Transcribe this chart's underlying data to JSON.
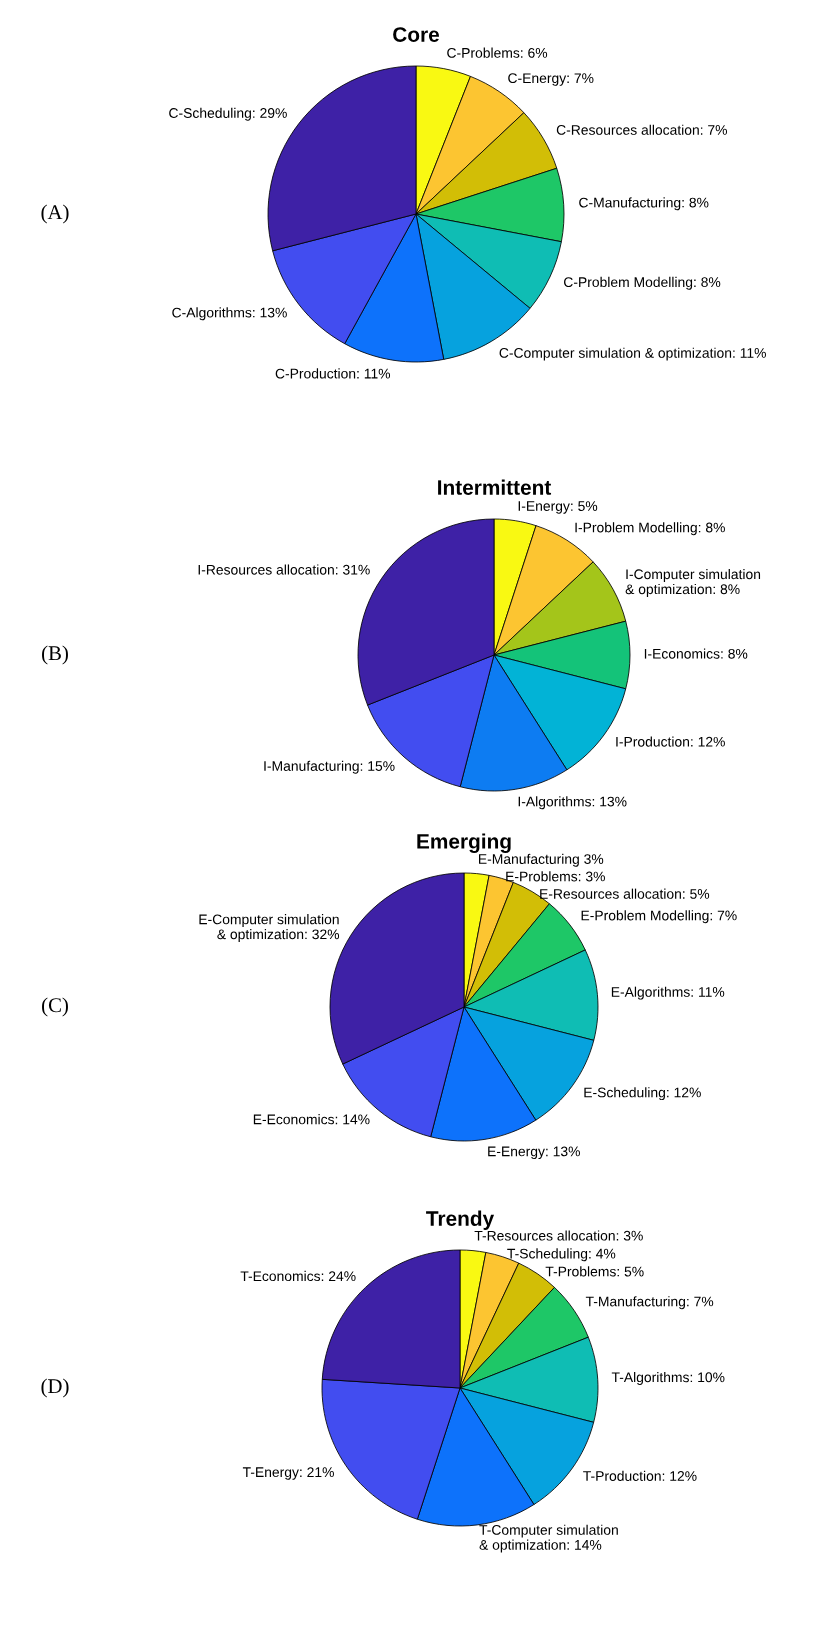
{
  "chart_data": [
    {
      "type": "pie",
      "title": "Core",
      "annotations": [
        "(A)"
      ],
      "categories": [
        "C-Problems: 6%",
        "C-Energy: 7%",
        "C-Resources allocation: 7%",
        "C-Manufacturing: 8%",
        "C-Problem Modelling: 8%",
        "C-Computer simulation & optimization: 11%",
        "C-Production: 11%",
        "C-Algorithms: 13%",
        "C-Scheduling: 29%"
      ],
      "values": [
        6,
        7,
        7,
        8,
        8,
        11,
        11,
        13,
        29
      ],
      "colors": [
        "#f9f912",
        "#fcc531",
        "#d2be06",
        "#1ec767",
        "#0fbdb4",
        "#06a2de",
        "#0d72fb",
        "#424df0",
        "#3e21a6"
      ]
    },
    {
      "type": "pie",
      "title": "Intermittent",
      "annotations": [
        "(B)"
      ],
      "categories": [
        "I-Energy: 5%",
        "I-Problem Modelling: 8%",
        "I-Computer simulation\n& optimization: 8%",
        "I-Economics: 8%",
        "I-Production: 12%",
        "I-Algorithms: 13%",
        "I-Manufacturing: 15%",
        "I-Resources allocation: 31%"
      ],
      "values": [
        5,
        8,
        8,
        8,
        12,
        13,
        15,
        31
      ],
      "colors": [
        "#f9f912",
        "#fcc531",
        "#a4c51a",
        "#14c379",
        "#02b3d6",
        "#0d7cf2",
        "#424df0",
        "#3e21a6"
      ]
    },
    {
      "type": "pie",
      "title": "Emerging",
      "annotations": [
        "(C)"
      ],
      "categories": [
        "E-Manufacturing 3%",
        "E-Problems: 3%",
        "E-Resources allocation: 5%",
        "E-Problem Modelling: 7%",
        "E-Algorithms: 11%",
        "E-Scheduling: 12%",
        "E-Energy: 13%",
        "E-Economics: 14%",
        "E-Computer simulation\n& optimization: 32%"
      ],
      "values": [
        3,
        3,
        5,
        7,
        11,
        12,
        13,
        14,
        32
      ],
      "colors": [
        "#f9f912",
        "#fcc531",
        "#d2be06",
        "#1ec767",
        "#0fbdb4",
        "#06a2de",
        "#0d72fb",
        "#424df0",
        "#3e21a6"
      ]
    },
    {
      "type": "pie",
      "title": "Trendy",
      "annotations": [
        "(D)"
      ],
      "categories": [
        "T-Resources allocation: 3%",
        "T-Scheduling: 4%",
        "T-Problems: 5%",
        "T-Manufacturing: 7%",
        "T-Algorithms: 10%",
        "T-Production: 12%",
        "T-Computer simulation\n& optimization: 14%",
        "T-Energy: 21%",
        "T-Economics: 24%"
      ],
      "values": [
        3,
        4,
        5,
        7,
        10,
        12,
        14,
        21,
        24
      ],
      "colors": [
        "#f9f912",
        "#fcc531",
        "#d2be06",
        "#1ec767",
        "#0fbdb4",
        "#06a2de",
        "#0d72fb",
        "#424df0",
        "#3e21a6"
      ]
    }
  ]
}
